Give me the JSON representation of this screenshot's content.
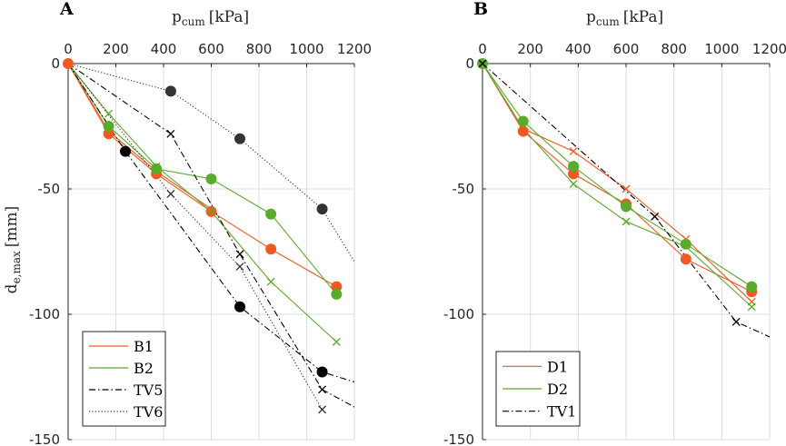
{
  "chart_data": [
    {
      "type": "line",
      "panel_label": "A",
      "xlabel_main": "p",
      "xlabel_sub": "cum",
      "xlabel_unit": "[kPa]",
      "ylabel_main": "d",
      "ylabel_sub": "e,max",
      "ylabel_unit": "[mm]",
      "xlim": [
        0,
        1200
      ],
      "ylim": [
        -150,
        0
      ],
      "xticks": [
        "0",
        "200",
        "400",
        "600",
        "800",
        "1000",
        "1200"
      ],
      "yticks": [
        "0",
        "-50",
        "-100",
        "-150"
      ],
      "xtick_values": [
        0,
        200,
        400,
        600,
        800,
        1000,
        1200
      ],
      "ytick_values": [
        0,
        -50,
        -100,
        -150
      ],
      "grid": true,
      "x_axis_position": "top",
      "legend_position": "bottom-left",
      "series": [
        {
          "name": "B1",
          "color": "#f05a22",
          "dash": "solid",
          "line": [
            [
              0,
              0
            ],
            [
              170,
              -28
            ],
            [
              370,
              -44
            ],
            [
              600,
              -59
            ],
            [
              850,
              -74
            ],
            [
              1125,
              -89
            ]
          ],
          "markers": [
            {
              "x": 0,
              "y": 0,
              "m": "dot"
            },
            {
              "x": 170,
              "y": -28,
              "m": "dot"
            },
            {
              "x": 370,
              "y": -44,
              "m": "dot"
            },
            {
              "x": 600,
              "y": -59,
              "m": "dot"
            },
            {
              "x": 850,
              "y": -74,
              "m": "dot"
            },
            {
              "x": 1125,
              "y": -89,
              "m": "dot"
            }
          ]
        },
        {
          "name": "B1",
          "color": "#f05a22",
          "dash": "solid",
          "legend": false,
          "line": [
            [
              0,
              0
            ],
            [
              170,
              -27
            ],
            [
              370,
              -43
            ],
            [
              600,
              -58
            ]
          ],
          "markers": []
        },
        {
          "name": "B2",
          "color": "#5aab2a",
          "dash": "solid",
          "line": [
            [
              0,
              0
            ],
            [
              170,
              -25
            ],
            [
              370,
              -42
            ],
            [
              600,
              -46
            ],
            [
              850,
              -60
            ],
            [
              1125,
              -92
            ]
          ],
          "markers": [
            {
              "x": 170,
              "y": -25,
              "m": "dot"
            },
            {
              "x": 370,
              "y": -42,
              "m": "dot"
            },
            {
              "x": 600,
              "y": -46,
              "m": "dot"
            },
            {
              "x": 850,
              "y": -60,
              "m": "dot"
            },
            {
              "x": 1125,
              "y": -92,
              "m": "dot"
            }
          ]
        },
        {
          "name": "B2",
          "color": "#5aab2a",
          "dash": "solid",
          "legend": false,
          "line": [
            [
              0,
              0
            ],
            [
              170,
              -20
            ],
            [
              370,
              -41
            ],
            [
              600,
              -59
            ],
            [
              850,
              -87
            ],
            [
              1125,
              -111
            ]
          ],
          "markers": [
            {
              "x": 170,
              "y": -20,
              "m": "x"
            },
            {
              "x": 370,
              "y": -41,
              "m": "x"
            },
            {
              "x": 600,
              "y": -59,
              "m": "x"
            },
            {
              "x": 850,
              "y": -87,
              "m": "x"
            },
            {
              "x": 1125,
              "y": -111,
              "m": "x"
            }
          ]
        },
        {
          "name": "TV5",
          "color": "#000000",
          "dash": "dashdot",
          "line": [
            [
              0,
              0
            ],
            [
              240,
              -35
            ],
            [
              720,
              -97
            ],
            [
              1065,
              -123
            ],
            [
              1200,
              -127
            ]
          ],
          "markers": [
            {
              "x": 240,
              "y": -35,
              "m": "dot"
            },
            {
              "x": 720,
              "y": -97,
              "m": "dot"
            },
            {
              "x": 1065,
              "y": -123,
              "m": "dot"
            }
          ]
        },
        {
          "name": "TV5",
          "color": "#000000",
          "dash": "dashdot",
          "legend": false,
          "line": [
            [
              0,
              0
            ],
            [
              430,
              -28
            ],
            [
              720,
              -76
            ],
            [
              1065,
              -130
            ],
            [
              1200,
              -137
            ]
          ],
          "markers": [
            {
              "x": 430,
              "y": -28,
              "m": "x"
            },
            {
              "x": 720,
              "y": -76,
              "m": "x"
            },
            {
              "x": 1065,
              "y": -130,
              "m": "x"
            }
          ]
        },
        {
          "name": "TV6",
          "color": "#333333",
          "dash": "dotted",
          "line": [
            [
              0,
              0
            ],
            [
              430,
              -11
            ],
            [
              720,
              -30
            ],
            [
              1065,
              -58
            ],
            [
              1200,
              -79
            ]
          ],
          "markers": [
            {
              "x": 430,
              "y": -11,
              "m": "dot"
            },
            {
              "x": 720,
              "y": -30,
              "m": "dot"
            },
            {
              "x": 1065,
              "y": -58,
              "m": "dot"
            }
          ]
        },
        {
          "name": "TV6",
          "color": "#333333",
          "dash": "dotted",
          "legend": false,
          "line": [
            [
              0,
              0
            ],
            [
              430,
              -52
            ],
            [
              720,
              -81
            ],
            [
              1065,
              -138
            ]
          ],
          "markers": [
            {
              "x": 430,
              "y": -52,
              "m": "x"
            },
            {
              "x": 720,
              "y": -81,
              "m": "x"
            },
            {
              "x": 1065,
              "y": -138,
              "m": "x"
            }
          ]
        }
      ],
      "legend": [
        {
          "label": "B1",
          "color": "#f05a22",
          "dash": "solid"
        },
        {
          "label": "B2",
          "color": "#5aab2a",
          "dash": "solid"
        },
        {
          "label": "TV5",
          "color": "#000000",
          "dash": "dashdot"
        },
        {
          "label": "TV6",
          "color": "#333333",
          "dash": "dotted"
        }
      ]
    },
    {
      "type": "line",
      "panel_label": "B",
      "xlabel_main": "p",
      "xlabel_sub": "cum",
      "xlabel_unit": "[kPa]",
      "xlim": [
        0,
        1200
      ],
      "ylim": [
        -150,
        0
      ],
      "xticks": [
        "0",
        "200",
        "400",
        "600",
        "800",
        "1000",
        "1200"
      ],
      "yticks": [
        "0",
        "-50",
        "-100",
        "-150"
      ],
      "xtick_values": [
        0,
        200,
        400,
        600,
        800,
        1000,
        1200
      ],
      "ytick_values": [
        0,
        -50,
        -100,
        -150
      ],
      "grid": true,
      "x_axis_position": "top",
      "legend_position": "bottom-left",
      "series": [
        {
          "name": "D1",
          "color": "#f05a22",
          "dash": "solid",
          "line": [
            [
              0,
              0
            ],
            [
              170,
              -27
            ],
            [
              380,
              -44
            ],
            [
              600,
              -56
            ],
            [
              850,
              -78
            ],
            [
              1125,
              -91
            ]
          ],
          "markers": [
            {
              "x": 170,
              "y": -27,
              "m": "dot"
            },
            {
              "x": 380,
              "y": -44,
              "m": "dot"
            },
            {
              "x": 600,
              "y": -56,
              "m": "dot"
            },
            {
              "x": 850,
              "y": -78,
              "m": "dot"
            },
            {
              "x": 1125,
              "y": -91,
              "m": "dot"
            }
          ]
        },
        {
          "name": "D1",
          "color": "#f05a22",
          "dash": "solid",
          "legend": false,
          "line": [
            [
              0,
              0
            ],
            [
              170,
              -26
            ],
            [
              380,
              -35
            ],
            [
              600,
              -50
            ],
            [
              850,
              -70
            ],
            [
              1125,
              -95
            ]
          ],
          "markers": [
            {
              "x": 380,
              "y": -35,
              "m": "x"
            },
            {
              "x": 600,
              "y": -50,
              "m": "x"
            },
            {
              "x": 850,
              "y": -70,
              "m": "x"
            },
            {
              "x": 1125,
              "y": -95,
              "m": "x"
            }
          ]
        },
        {
          "name": "D2",
          "color": "#5aab2a",
          "dash": "solid",
          "line": [
            [
              0,
              0
            ],
            [
              170,
              -23
            ],
            [
              380,
              -41
            ],
            [
              600,
              -57
            ],
            [
              850,
              -72
            ],
            [
              1125,
              -89
            ]
          ],
          "markers": [
            {
              "x": 0,
              "y": 0,
              "m": "dot"
            },
            {
              "x": 170,
              "y": -23,
              "m": "dot"
            },
            {
              "x": 380,
              "y": -41,
              "m": "dot"
            },
            {
              "x": 600,
              "y": -57,
              "m": "dot"
            },
            {
              "x": 850,
              "y": -72,
              "m": "dot"
            },
            {
              "x": 1125,
              "y": -89,
              "m": "dot"
            }
          ]
        },
        {
          "name": "D2",
          "color": "#5aab2a",
          "dash": "solid",
          "legend": false,
          "line": [
            [
              0,
              0
            ],
            [
              170,
              -26
            ],
            [
              380,
              -48
            ],
            [
              600,
              -63
            ],
            [
              850,
              -73
            ],
            [
              1125,
              -97
            ]
          ],
          "markers": [
            {
              "x": 380,
              "y": -48,
              "m": "x"
            },
            {
              "x": 600,
              "y": -63,
              "m": "x"
            },
            {
              "x": 1125,
              "y": -97,
              "m": "x"
            }
          ]
        },
        {
          "name": "TV1",
          "color": "#000000",
          "dash": "dashdot",
          "line": [
            [
              0,
              0
            ],
            [
              720,
              -61
            ],
            [
              1060,
              -103
            ],
            [
              1200,
              -109
            ]
          ],
          "markers": [
            {
              "x": 0,
              "y": 0,
              "m": "x"
            },
            {
              "x": 720,
              "y": -61,
              "m": "x"
            },
            {
              "x": 1060,
              "y": -103,
              "m": "x"
            }
          ]
        }
      ],
      "legend": [
        {
          "label": "D1",
          "color": "#f05a22",
          "dash": "solid"
        },
        {
          "label": "D2",
          "color": "#5aab2a",
          "dash": "solid"
        },
        {
          "label": "TV1",
          "color": "#000000",
          "dash": "dashdot"
        }
      ]
    }
  ]
}
